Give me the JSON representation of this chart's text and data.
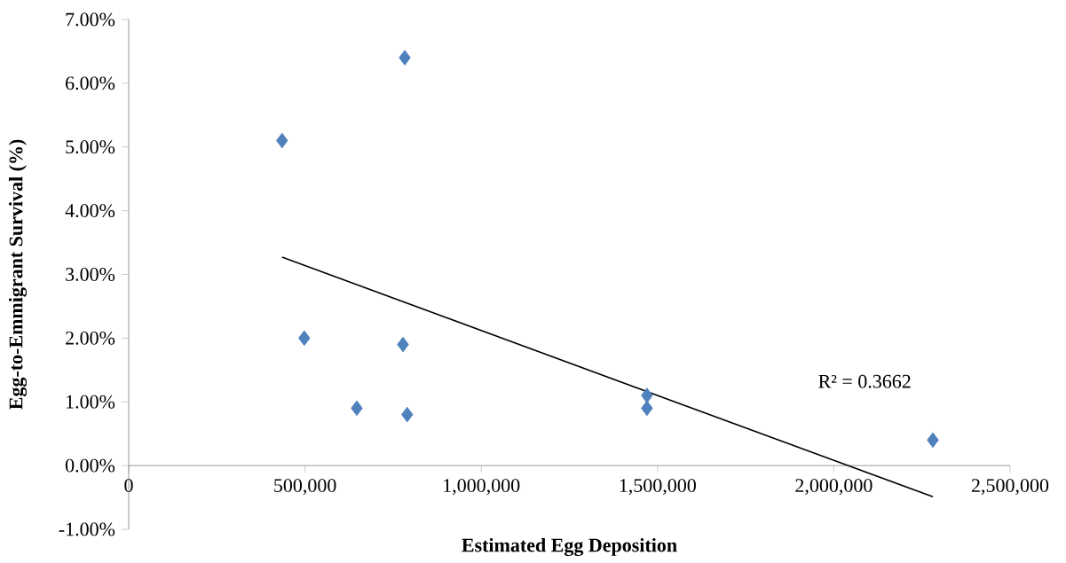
{
  "chart_data": {
    "type": "scatter",
    "xlabel": "Estimated Egg Deposition",
    "ylabel": "Egg-to-Emmigrant Survival (%)",
    "series": [
      {
        "color": "#4f81bd",
        "marker": "diamond",
        "x": [
          783000,
          435000,
          498000,
          778000,
          647000,
          790000,
          1470000,
          1470000,
          2281000
        ],
        "values": [
          6.4,
          5.1,
          2.0,
          1.9,
          0.9,
          0.8,
          1.1,
          0.9,
          0.4
        ]
      },
      {
        "type": "line",
        "color": "#000000",
        "x": [
          435000,
          2281000
        ],
        "values": [
          3.27,
          -0.49
        ]
      }
    ],
    "xlim": [
      0,
      2500000
    ],
    "ylim": [
      -1,
      7
    ],
    "xticks": [
      {
        "value": 0,
        "label": "0"
      },
      {
        "value": 500000,
        "label": "500,000"
      },
      {
        "value": 1000000,
        "label": "1,000,000"
      },
      {
        "value": 1500000,
        "label": "1,500,000"
      },
      {
        "value": 2000000,
        "label": "2,000,000"
      },
      {
        "value": 2500000,
        "label": "2,500,000"
      }
    ],
    "yticks": [
      {
        "value": -1,
        "label": "-1.00%"
      },
      {
        "value": 0,
        "label": "0.00%"
      },
      {
        "value": 1,
        "label": "1.00%"
      },
      {
        "value": 2,
        "label": "2.00%"
      },
      {
        "value": 3,
        "label": "3.00%"
      },
      {
        "value": 4,
        "label": "4.00%"
      },
      {
        "value": 5,
        "label": "5.00%"
      },
      {
        "value": 6,
        "label": "6.00%"
      },
      {
        "value": 7,
        "label": "7.00%"
      }
    ],
    "annotations": [
      "R² = 0.3662"
    ],
    "grid": false
  }
}
